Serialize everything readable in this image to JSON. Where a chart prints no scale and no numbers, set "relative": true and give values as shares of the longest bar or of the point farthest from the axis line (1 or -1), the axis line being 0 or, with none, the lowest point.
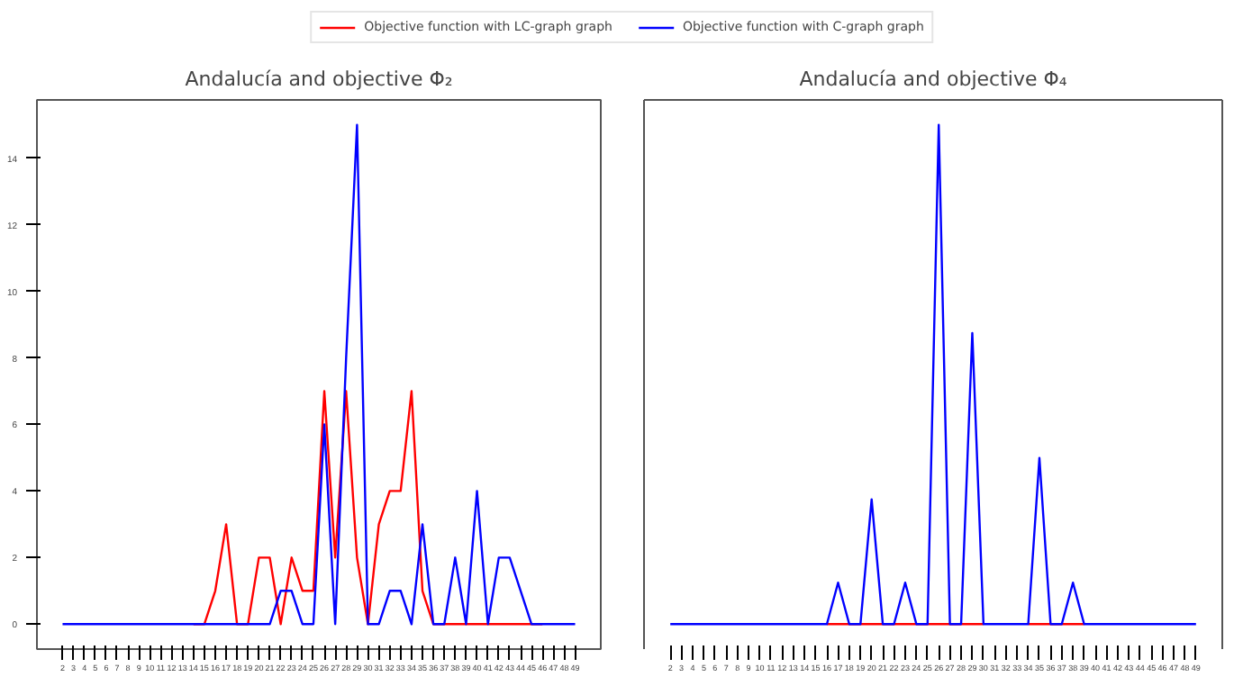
{
  "chart_data": [
    {
      "type": "line",
      "title": "Andalucía and objective Φ₂",
      "x": [
        2,
        3,
        4,
        5,
        6,
        7,
        8,
        9,
        10,
        11,
        12,
        13,
        14,
        15,
        16,
        17,
        18,
        19,
        20,
        21,
        22,
        23,
        24,
        25,
        26,
        27,
        28,
        29,
        30,
        31,
        32,
        33,
        34,
        35,
        36,
        37,
        38,
        39,
        40,
        41,
        42,
        43,
        44,
        45,
        46,
        47,
        48,
        49
      ],
      "series": [
        {
          "name": "Objective function with LC-graph graph",
          "color": "#ff0000",
          "values": [
            null,
            null,
            null,
            null,
            null,
            null,
            null,
            null,
            null,
            null,
            null,
            null,
            0,
            0,
            1,
            3,
            0,
            0,
            2,
            2,
            0,
            2,
            1,
            1,
            7,
            2,
            7,
            2,
            0,
            3,
            4,
            4,
            7,
            1,
            0,
            0,
            0,
            0,
            0,
            0,
            0,
            0,
            0,
            0,
            0,
            null,
            null,
            null
          ]
        },
        {
          "name": "Objective function with C-graph graph",
          "color": "#0000ff",
          "values": [
            0,
            0,
            0,
            0,
            0,
            0,
            0,
            0,
            0,
            0,
            0,
            0,
            0,
            0,
            0,
            0,
            0,
            0,
            0,
            0,
            1,
            1,
            0,
            0,
            6,
            0,
            8,
            15,
            0,
            0,
            1,
            1,
            0,
            3,
            0,
            0,
            2,
            0,
            4,
            0,
            2,
            2,
            1,
            0,
            0,
            0,
            0,
            0
          ]
        }
      ],
      "xlim": [
        -0.35,
        51.35
      ],
      "xticks": [
        2,
        3,
        4,
        5,
        6,
        7,
        8,
        9,
        10,
        11,
        12,
        13,
        14,
        15,
        16,
        17,
        18,
        19,
        20,
        21,
        22,
        23,
        24,
        25,
        26,
        27,
        28,
        29,
        30,
        31,
        32,
        33,
        34,
        35,
        36,
        37,
        38,
        39,
        40,
        41,
        42,
        43,
        44,
        45,
        46,
        47,
        48,
        49
      ],
      "ylim": [
        -0.75,
        15.75
      ],
      "yticks": [
        0,
        2,
        4,
        6,
        8,
        10,
        12,
        14
      ],
      "legend": "top"
    },
    {
      "type": "line",
      "title": "Andalucía and objective Φ₄",
      "x": [
        2,
        3,
        4,
        5,
        6,
        7,
        8,
        9,
        10,
        11,
        12,
        13,
        14,
        15,
        16,
        17,
        18,
        19,
        20,
        21,
        22,
        23,
        24,
        25,
        26,
        27,
        28,
        29,
        30,
        31,
        32,
        33,
        34,
        35,
        36,
        37,
        38,
        39,
        40,
        41,
        42,
        43,
        44,
        45,
        46,
        47,
        48,
        49
      ],
      "series": [
        {
          "name": "Objective function with LC-graph graph",
          "color": "#ff0000",
          "values": [
            null,
            null,
            null,
            null,
            null,
            null,
            null,
            null,
            null,
            null,
            null,
            null,
            null,
            null,
            0,
            0,
            0,
            0,
            0,
            0,
            0,
            0,
            0,
            0,
            0,
            0,
            0,
            0,
            0,
            null,
            null,
            null,
            0,
            0,
            0,
            0,
            0,
            0,
            null,
            null,
            null,
            null,
            null,
            null,
            null,
            null,
            null,
            null
          ]
        },
        {
          "name": "Objective function with C-graph graph",
          "color": "#0000ff",
          "values": [
            0,
            0,
            0,
            0,
            0,
            0,
            0,
            0,
            0,
            0,
            0,
            0,
            0,
            0,
            0,
            0.083,
            0,
            0,
            0.25,
            0,
            0,
            0.083,
            0,
            0,
            1,
            0,
            0,
            0.583,
            0,
            0,
            0,
            0,
            0,
            0.333,
            0,
            0,
            0.083,
            0,
            0,
            0,
            0,
            0,
            0,
            0,
            0,
            0,
            0,
            0
          ]
        }
      ],
      "relative": true,
      "xlim": [
        -0.35,
        51.35
      ],
      "xticks": [
        2,
        3,
        4,
        5,
        6,
        7,
        8,
        9,
        10,
        11,
        12,
        13,
        14,
        15,
        16,
        17,
        18,
        19,
        20,
        21,
        22,
        23,
        24,
        25,
        26,
        27,
        28,
        29,
        30,
        31,
        32,
        33,
        34,
        35,
        36,
        37,
        38,
        39,
        40,
        41,
        42,
        43,
        44,
        45,
        46,
        47,
        48,
        49
      ],
      "legend": "top"
    }
  ]
}
